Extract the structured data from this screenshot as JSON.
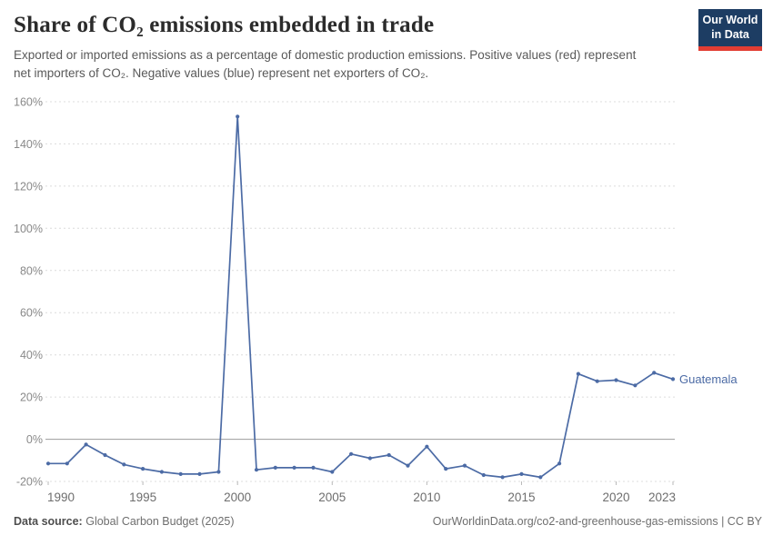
{
  "header": {
    "title": "Share of CO₂ emissions embedded in trade",
    "subtitle": "Exported or imported emissions as a percentage of domestic production emissions. Positive values (red) represent net importers of CO₂. Negative values (blue) represent net exporters of CO₂.",
    "logo": {
      "line1": "Our World",
      "line2": "in Data",
      "bg_color": "#1d3d63",
      "accent_color": "#e23d33"
    }
  },
  "chart_data": {
    "type": "line",
    "title": "Share of CO₂ emissions embedded in trade",
    "x": [
      1990,
      1991,
      1992,
      1993,
      1994,
      1995,
      1996,
      1997,
      1998,
      1999,
      2000,
      2001,
      2002,
      2003,
      2004,
      2005,
      2006,
      2007,
      2008,
      2009,
      2010,
      2011,
      2012,
      2013,
      2014,
      2015,
      2016,
      2017,
      2018,
      2019,
      2020,
      2021,
      2022,
      2023
    ],
    "series": [
      {
        "name": "Guatemala",
        "color": "#4C6BA5",
        "values": [
          -11.5,
          -11.5,
          -2.5,
          -7.5,
          -12,
          -14,
          -15.5,
          -16.5,
          -16.5,
          -15.5,
          153,
          -14.5,
          -13.5,
          -13.5,
          -13.5,
          -15.5,
          -7,
          -9,
          -7.5,
          -12.5,
          -3.5,
          -14,
          -12.5,
          -17,
          -18,
          -16.5,
          -18,
          -11.5,
          31,
          27.5,
          28,
          25.5,
          31.5,
          28.5
        ]
      }
    ],
    "unit": "%",
    "ylim": [
      -20,
      160
    ],
    "ytick_step": 20,
    "xticks": [
      1990,
      1995,
      2000,
      2005,
      2010,
      2015,
      2020,
      2023
    ],
    "grid": "horizontal-dashed",
    "zero_line": true,
    "legend_position": "end-of-line-label",
    "colors": {
      "gridline": "#dcdcdc",
      "zero_line": "#9b9b9b",
      "tick": "#b8b8b8"
    }
  },
  "footer": {
    "source_label": "Data source:",
    "source_value": "Global Carbon Budget (2025)",
    "license": "OurWorldinData.org/co2-and-greenhouse-gas-emissions | CC BY"
  }
}
